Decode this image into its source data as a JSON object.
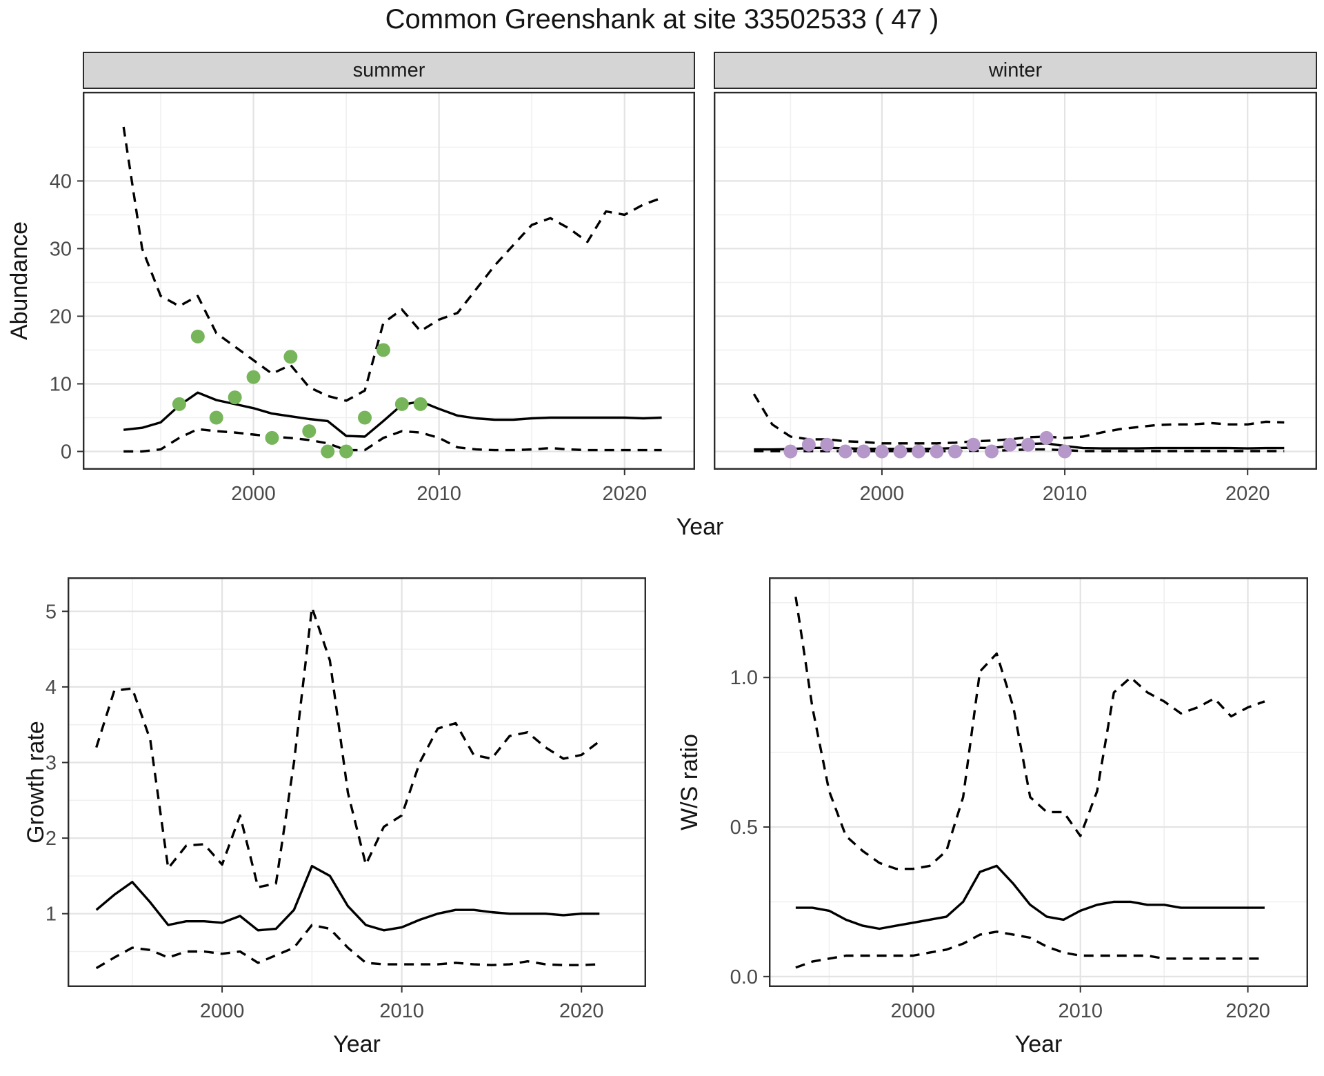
{
  "title": "Common Greenshank at site 33502533 ( 47 )",
  "colors": {
    "summer_point": "#77b55b",
    "winter_point": "#b598c9",
    "line": "#000000",
    "strip_bg": "#d5d5d5",
    "grid_major": "#e3e3e3",
    "grid_minor": "#f0f0f0",
    "panel_border": "#2b2b2b",
    "tick_label": "#4a4a4a"
  },
  "chart_data": [
    {
      "id": "summer_abundance",
      "type": "line",
      "facet_label": "summer",
      "ylabel": "Abundance",
      "xlabel": "Year",
      "legend_position": "none",
      "grid": true,
      "x": [
        1993,
        1994,
        1995,
        1996,
        1997,
        1998,
        1999,
        2000,
        2001,
        2002,
        2003,
        2004,
        2005,
        2006,
        2007,
        2008,
        2009,
        2010,
        2011,
        2012,
        2013,
        2014,
        2015,
        2016,
        2017,
        2018,
        2019,
        2020,
        2021,
        2022
      ],
      "series": [
        {
          "name": "upper_95",
          "style": "dashed",
          "values": [
            48,
            30,
            23,
            21.5,
            23,
            17.5,
            15.5,
            13.5,
            11.5,
            12.8,
            9.5,
            8.2,
            7.5,
            9.0,
            19.0,
            21.0,
            17.8,
            19.5,
            20.5,
            24.0,
            27.5,
            30.5,
            33.5,
            34.5,
            33.0,
            31.0,
            35.5,
            35.0,
            36.5,
            37.5
          ]
        },
        {
          "name": "lower_95",
          "style": "dashed",
          "values": [
            0,
            0,
            0.3,
            2.0,
            3.3,
            3.0,
            2.8,
            2.5,
            2.2,
            2.0,
            1.7,
            1.2,
            0.2,
            0.2,
            2.0,
            3.0,
            2.8,
            2.0,
            0.6,
            0.3,
            0.2,
            0.2,
            0.3,
            0.5,
            0.3,
            0.2,
            0.2,
            0.2,
            0.2,
            0.2
          ]
        },
        {
          "name": "median",
          "style": "solid",
          "values": [
            3.2,
            3.5,
            4.3,
            6.8,
            8.7,
            7.6,
            7.0,
            6.4,
            5.6,
            5.2,
            4.8,
            4.5,
            2.3,
            2.2,
            4.5,
            6.9,
            7.4,
            6.3,
            5.3,
            4.9,
            4.7,
            4.7,
            4.9,
            5.0,
            5.0,
            5.0,
            5.0,
            5.0,
            4.9,
            5.0
          ]
        }
      ],
      "points": {
        "name": "observed_counts",
        "color": "#77b55b",
        "x": [
          1996,
          1997,
          1998,
          1999,
          2000,
          2001,
          2002,
          2003,
          2004,
          2005,
          2006,
          2007,
          2008,
          2009
        ],
        "y": [
          7,
          17,
          5,
          8,
          11,
          2,
          14,
          3,
          0,
          0,
          5,
          15,
          7,
          7
        ]
      },
      "xlim": [
        1990.8,
        2023.8
      ],
      "ylim": [
        -2.7,
        53.2
      ],
      "xticks": [
        2000,
        2010,
        2020
      ],
      "xtick_labels": [
        "2000",
        "2010",
        "2020"
      ],
      "yticks": [
        0,
        10,
        20,
        30,
        40
      ],
      "ytick_labels": [
        "0",
        "10",
        "20",
        "30",
        "40"
      ],
      "xminor": [
        1995,
        2005,
        2015
      ],
      "yminor": [
        5,
        15,
        25,
        35,
        45
      ],
      "show_yticklabels": true
    },
    {
      "id": "winter_abundance",
      "type": "line",
      "facet_label": "winter",
      "ylabel": "Abundance",
      "xlabel": "Year",
      "legend_position": "none",
      "grid": true,
      "x": [
        1993,
        1994,
        1995,
        1996,
        1997,
        1998,
        1999,
        2000,
        2001,
        2002,
        2003,
        2004,
        2005,
        2006,
        2007,
        2008,
        2009,
        2010,
        2011,
        2012,
        2013,
        2014,
        2015,
        2016,
        2017,
        2018,
        2019,
        2020,
        2021,
        2022
      ],
      "series": [
        {
          "name": "upper_95",
          "style": "dashed",
          "values": [
            8.5,
            4.0,
            2.2,
            1.8,
            1.8,
            1.5,
            1.4,
            1.2,
            1.2,
            1.2,
            1.2,
            1.3,
            1.5,
            1.6,
            1.8,
            2.1,
            2.2,
            2.0,
            2.2,
            2.8,
            3.3,
            3.6,
            3.9,
            4.0,
            4.0,
            4.2,
            4.0,
            4.0,
            4.4,
            4.3
          ]
        },
        {
          "name": "lower_95",
          "style": "dashed",
          "values": [
            0.05,
            0.05,
            0.05,
            0.05,
            0.05,
            0.05,
            0.05,
            0.05,
            0.05,
            0.05,
            0.05,
            0.05,
            0.1,
            0.1,
            0.2,
            0.3,
            0.3,
            0.2,
            0.05,
            0.05,
            0.05,
            0.05,
            0.05,
            0.05,
            0.05,
            0.05,
            0.05,
            0.05,
            0.05,
            0.05
          ]
        },
        {
          "name": "median",
          "style": "solid",
          "values": [
            0.3,
            0.3,
            0.35,
            0.5,
            0.55,
            0.45,
            0.4,
            0.38,
            0.38,
            0.38,
            0.4,
            0.5,
            0.55,
            0.5,
            0.8,
            1.1,
            1.2,
            0.8,
            0.5,
            0.45,
            0.45,
            0.45,
            0.5,
            0.5,
            0.5,
            0.5,
            0.5,
            0.45,
            0.5,
            0.5
          ]
        }
      ],
      "points": {
        "name": "observed_counts",
        "color": "#b598c9",
        "x": [
          1995,
          1996,
          1997,
          1998,
          1999,
          2000,
          2001,
          2002,
          2003,
          2004,
          2005,
          2006,
          2007,
          2008,
          2009,
          2010
        ],
        "y": [
          0,
          1,
          1,
          0,
          0,
          0,
          0,
          0,
          0,
          0,
          1,
          0,
          1,
          1,
          2,
          0
        ]
      },
      "xlim": [
        1990.8,
        2023.8
      ],
      "ylim": [
        -2.7,
        53.2
      ],
      "xticks": [
        2000,
        2010,
        2020
      ],
      "xtick_labels": [
        "2000",
        "2010",
        "2020"
      ],
      "yticks": [
        0,
        10,
        20,
        30,
        40
      ],
      "ytick_labels": [
        "0",
        "10",
        "20",
        "30",
        "40"
      ],
      "xminor": [
        1995,
        2005,
        2015
      ],
      "yminor": [
        5,
        15,
        25,
        35,
        45
      ],
      "show_yticklabels": false
    },
    {
      "id": "growth_rate",
      "type": "line",
      "facet_label": "",
      "ylabel": "Growth rate",
      "xlabel": "Year",
      "legend_position": "none",
      "grid": true,
      "x": [
        1993,
        1994,
        1995,
        1996,
        1997,
        1998,
        1999,
        2000,
        2001,
        2002,
        2003,
        2004,
        2005,
        2006,
        2007,
        2008,
        2009,
        2010,
        2011,
        2012,
        2013,
        2014,
        2015,
        2016,
        2017,
        2018,
        2019,
        2020,
        2021
      ],
      "series": [
        {
          "name": "upper_95",
          "style": "dashed",
          "values": [
            3.2,
            3.95,
            3.98,
            3.3,
            1.6,
            1.9,
            1.92,
            1.65,
            2.3,
            1.35,
            1.4,
            3.0,
            5.05,
            4.35,
            2.6,
            1.65,
            2.15,
            2.3,
            3.0,
            3.45,
            3.52,
            3.1,
            3.05,
            3.35,
            3.4,
            3.2,
            3.05,
            3.1,
            3.28
          ]
        },
        {
          "name": "lower_95",
          "style": "dashed",
          "values": [
            0.28,
            0.42,
            0.55,
            0.52,
            0.42,
            0.5,
            0.5,
            0.47,
            0.5,
            0.35,
            0.45,
            0.55,
            0.85,
            0.8,
            0.55,
            0.35,
            0.33,
            0.33,
            0.33,
            0.33,
            0.35,
            0.33,
            0.32,
            0.33,
            0.37,
            0.33,
            0.32,
            0.32,
            0.33
          ]
        },
        {
          "name": "median",
          "style": "solid",
          "values": [
            1.05,
            1.25,
            1.42,
            1.15,
            0.85,
            0.9,
            0.9,
            0.88,
            0.97,
            0.78,
            0.8,
            1.05,
            1.63,
            1.5,
            1.1,
            0.85,
            0.78,
            0.82,
            0.92,
            1.0,
            1.05,
            1.05,
            1.02,
            1.0,
            1.0,
            1.0,
            0.98,
            1.0,
            1.0
          ]
        }
      ],
      "xlim": [
        1991.4,
        2023.6
      ],
      "ylim": [
        0.03,
        5.45
      ],
      "xticks": [
        2000,
        2010,
        2020
      ],
      "xtick_labels": [
        "2000",
        "2010",
        "2020"
      ],
      "yticks": [
        1,
        2,
        3,
        4,
        5
      ],
      "ytick_labels": [
        "1",
        "2",
        "3",
        "4",
        "5"
      ],
      "xminor": [
        1995,
        2005,
        2015
      ],
      "yminor": [
        0.5,
        1.5,
        2.5,
        3.5,
        4.5
      ],
      "show_yticklabels": true
    },
    {
      "id": "ws_ratio",
      "type": "line",
      "facet_label": "",
      "ylabel": "W/S ratio",
      "xlabel": "Year",
      "legend_position": "none",
      "grid": true,
      "x": [
        1993,
        1994,
        1995,
        1996,
        1997,
        1998,
        1999,
        2000,
        2001,
        2002,
        2003,
        2004,
        2005,
        2006,
        2007,
        2008,
        2009,
        2010,
        2011,
        2012,
        2013,
        2014,
        2015,
        2016,
        2017,
        2018,
        2019,
        2020,
        2021
      ],
      "series": [
        {
          "name": "upper_95",
          "style": "dashed",
          "values": [
            1.27,
            0.9,
            0.62,
            0.47,
            0.42,
            0.38,
            0.36,
            0.36,
            0.37,
            0.42,
            0.6,
            1.02,
            1.08,
            0.9,
            0.6,
            0.55,
            0.55,
            0.47,
            0.62,
            0.95,
            1.0,
            0.95,
            0.92,
            0.88,
            0.9,
            0.93,
            0.87,
            0.9,
            0.92
          ]
        },
        {
          "name": "lower_95",
          "style": "dashed",
          "values": [
            0.03,
            0.05,
            0.06,
            0.07,
            0.07,
            0.07,
            0.07,
            0.07,
            0.08,
            0.09,
            0.11,
            0.14,
            0.15,
            0.14,
            0.13,
            0.1,
            0.08,
            0.07,
            0.07,
            0.07,
            0.07,
            0.07,
            0.06,
            0.06,
            0.06,
            0.06,
            0.06,
            0.06,
            0.06
          ]
        },
        {
          "name": "median",
          "style": "solid",
          "values": [
            0.23,
            0.23,
            0.22,
            0.19,
            0.17,
            0.16,
            0.17,
            0.18,
            0.19,
            0.2,
            0.25,
            0.35,
            0.37,
            0.31,
            0.24,
            0.2,
            0.19,
            0.22,
            0.24,
            0.25,
            0.25,
            0.24,
            0.24,
            0.23,
            0.23,
            0.23,
            0.23,
            0.23,
            0.23
          ]
        }
      ],
      "xlim": [
        1991.4,
        2023.6
      ],
      "ylim": [
        -0.035,
        1.335
      ],
      "xticks": [
        2000,
        2010,
        2020
      ],
      "xtick_labels": [
        "2000",
        "2010",
        "2020"
      ],
      "yticks": [
        0.0,
        0.5,
        1.0
      ],
      "ytick_labels": [
        "0.0",
        "0.5",
        "1.0"
      ],
      "xminor": [
        1995,
        2005,
        2015
      ],
      "yminor": [
        0.25,
        0.75,
        1.25
      ],
      "show_yticklabels": true
    }
  ]
}
